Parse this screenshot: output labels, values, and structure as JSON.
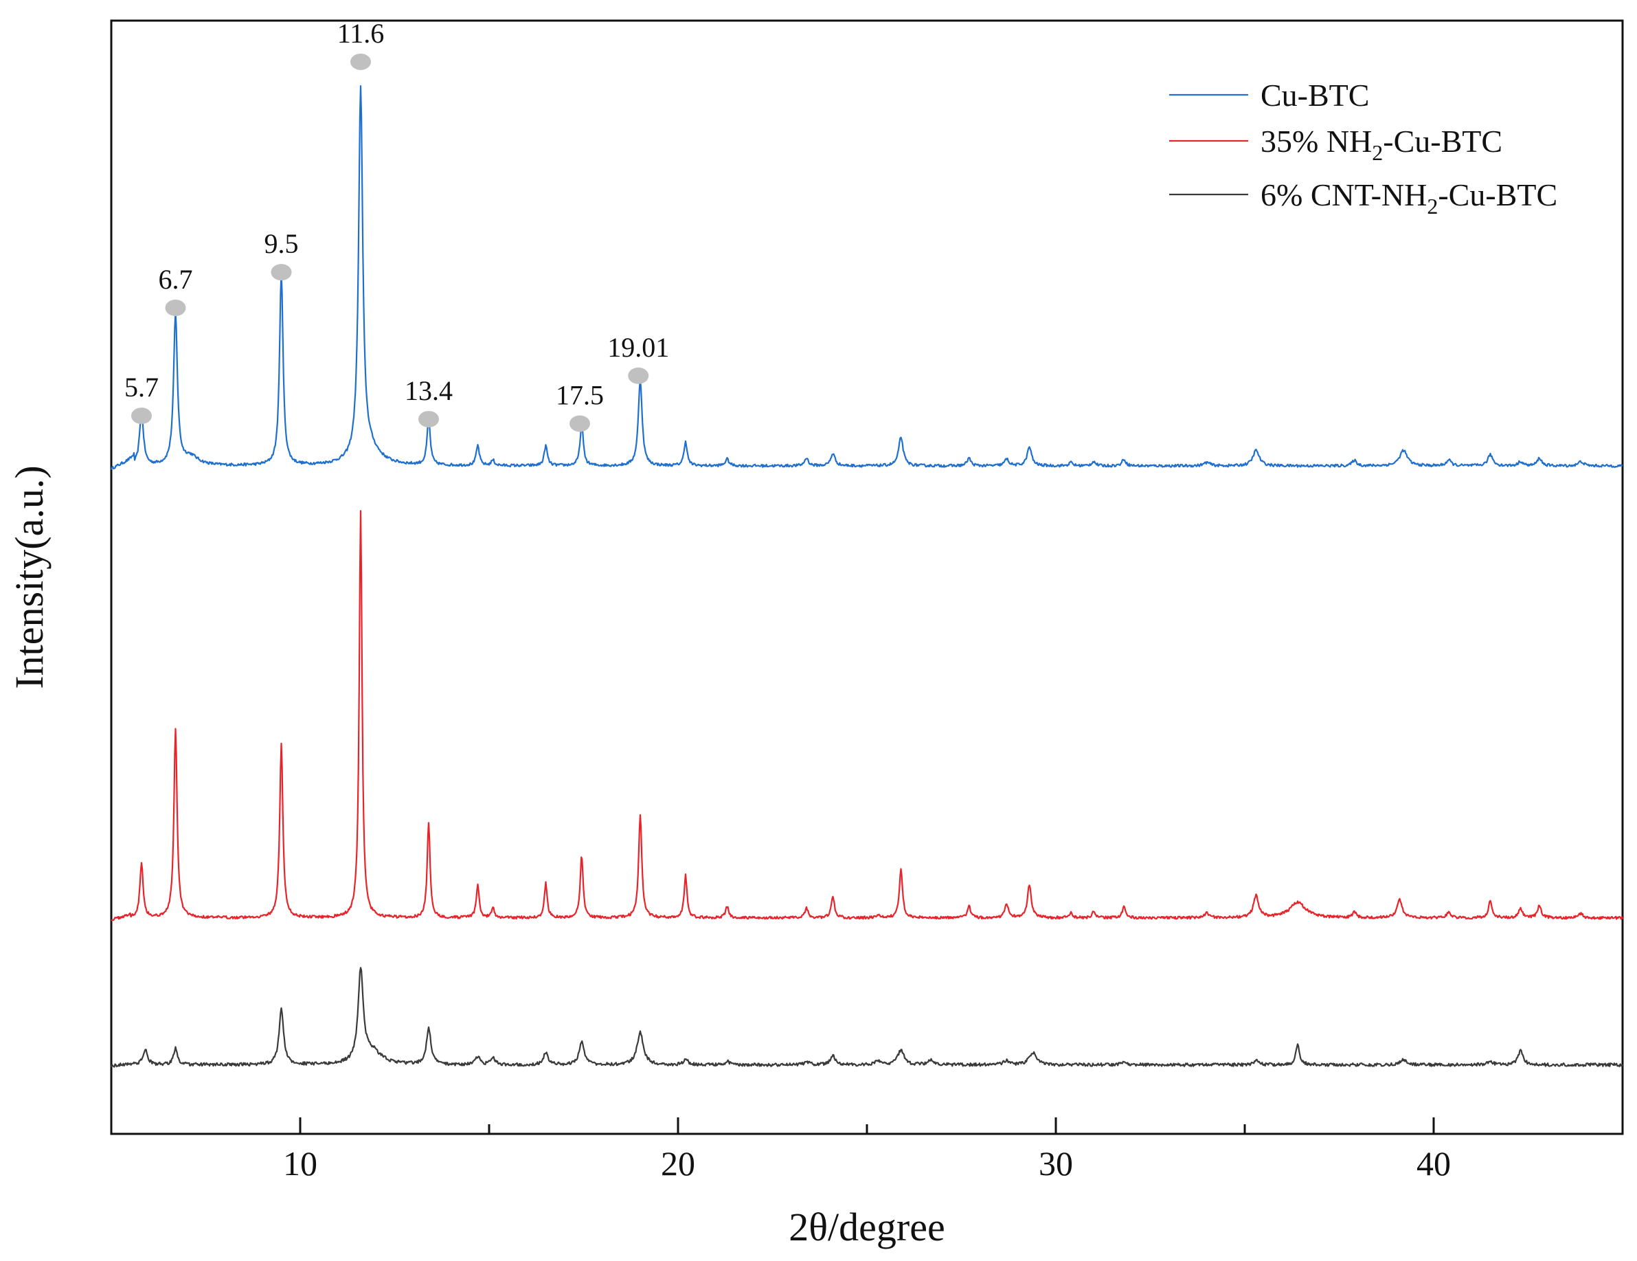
{
  "chart_data": {
    "type": "line",
    "title": "",
    "xlabel": "2θ/degree",
    "ylabel": "Intensity(a.u.)",
    "xlim": [
      5,
      45
    ],
    "ylim": [
      0,
      100
    ],
    "x_ticks": [
      10,
      20,
      30,
      40
    ],
    "x_tick_labels": [
      "10",
      "20",
      "30",
      "40"
    ],
    "y_ticks_shown": false,
    "grid": false,
    "legend_position": "top-right",
    "peak_marker_color": "#c0c0c0",
    "peak_labels": [
      {
        "label": "5.7",
        "x": 5.8,
        "y": 64.5
      },
      {
        "label": "6.7",
        "x": 6.7,
        "y": 74.2
      },
      {
        "label": "9.5",
        "x": 9.5,
        "y": 77.4
      },
      {
        "label": "11.6",
        "x": 11.6,
        "y": 96.3
      },
      {
        "label": "13.4",
        "x": 13.4,
        "y": 64.2
      },
      {
        "label": "17.5",
        "x": 17.4,
        "y": 63.8
      },
      {
        "label": "19.01",
        "x": 18.95,
        "y": 68.1
      }
    ],
    "series": [
      {
        "name": "Cu-BTC",
        "color": "#1f6fcf",
        "baseline": 60.0,
        "noise": 0.12,
        "rise": [
          {
            "x": 5.0,
            "y": 59.7
          },
          {
            "x": 5.6,
            "y": 60.6
          }
        ],
        "peaks": [
          {
            "x": 5.8,
            "h": 4.9,
            "w": 0.06
          },
          {
            "x": 6.7,
            "h": 13.5,
            "w": 0.06
          },
          {
            "x": 7.1,
            "h": 0.8,
            "w": 0.25
          },
          {
            "x": 9.5,
            "h": 17.4,
            "w": 0.055
          },
          {
            "x": 11.6,
            "h": 33.0,
            "w": 0.065
          },
          {
            "x": 11.8,
            "h": 1.5,
            "w": 0.35
          },
          {
            "x": 13.4,
            "h": 4.2,
            "w": 0.05
          },
          {
            "x": 14.7,
            "h": 1.8,
            "w": 0.05
          },
          {
            "x": 15.1,
            "h": 0.5,
            "w": 0.05
          },
          {
            "x": 16.5,
            "h": 1.8,
            "w": 0.05
          },
          {
            "x": 17.45,
            "h": 3.8,
            "w": 0.05
          },
          {
            "x": 19.0,
            "h": 7.8,
            "w": 0.06
          },
          {
            "x": 20.2,
            "h": 2.2,
            "w": 0.05
          },
          {
            "x": 21.3,
            "h": 0.6,
            "w": 0.06
          },
          {
            "x": 23.4,
            "h": 0.7,
            "w": 0.06
          },
          {
            "x": 24.1,
            "h": 1.1,
            "w": 0.07
          },
          {
            "x": 25.9,
            "h": 2.6,
            "w": 0.07
          },
          {
            "x": 27.7,
            "h": 0.7,
            "w": 0.06
          },
          {
            "x": 28.7,
            "h": 0.6,
            "w": 0.07
          },
          {
            "x": 29.3,
            "h": 1.7,
            "w": 0.07
          },
          {
            "x": 30.4,
            "h": 0.3,
            "w": 0.06
          },
          {
            "x": 31.0,
            "h": 0.4,
            "w": 0.06
          },
          {
            "x": 31.8,
            "h": 0.6,
            "w": 0.06
          },
          {
            "x": 34.0,
            "h": 0.3,
            "w": 0.1
          },
          {
            "x": 35.3,
            "h": 1.4,
            "w": 0.1
          },
          {
            "x": 37.9,
            "h": 0.5,
            "w": 0.07
          },
          {
            "x": 39.2,
            "h": 1.4,
            "w": 0.12
          },
          {
            "x": 40.4,
            "h": 0.5,
            "w": 0.08
          },
          {
            "x": 41.5,
            "h": 1.0,
            "w": 0.08
          },
          {
            "x": 42.3,
            "h": 0.4,
            "w": 0.07
          },
          {
            "x": 42.8,
            "h": 0.7,
            "w": 0.07
          },
          {
            "x": 43.9,
            "h": 0.4,
            "w": 0.08
          }
        ]
      },
      {
        "name": "35% NH2-Cu-BTC",
        "color": "#e8242a",
        "baseline": 19.4,
        "noise": 0.12,
        "rise": [
          {
            "x": 5.0,
            "y": 19.2
          },
          {
            "x": 5.5,
            "y": 19.6
          }
        ],
        "peaks": [
          {
            "x": 5.8,
            "h": 5.0,
            "w": 0.05
          },
          {
            "x": 6.7,
            "h": 16.9,
            "w": 0.05
          },
          {
            "x": 9.5,
            "h": 15.6,
            "w": 0.05
          },
          {
            "x": 11.6,
            "h": 36.6,
            "w": 0.045
          },
          {
            "x": 13.4,
            "h": 8.6,
            "w": 0.045
          },
          {
            "x": 14.7,
            "h": 3.0,
            "w": 0.045
          },
          {
            "x": 15.1,
            "h": 0.9,
            "w": 0.045
          },
          {
            "x": 16.5,
            "h": 3.1,
            "w": 0.045
          },
          {
            "x": 17.45,
            "h": 5.6,
            "w": 0.045
          },
          {
            "x": 19.0,
            "h": 9.3,
            "w": 0.05
          },
          {
            "x": 20.2,
            "h": 3.8,
            "w": 0.045
          },
          {
            "x": 21.3,
            "h": 1.0,
            "w": 0.05
          },
          {
            "x": 23.4,
            "h": 0.9,
            "w": 0.05
          },
          {
            "x": 24.1,
            "h": 1.9,
            "w": 0.05
          },
          {
            "x": 25.3,
            "h": 0.3,
            "w": 0.05
          },
          {
            "x": 25.9,
            "h": 4.4,
            "w": 0.05
          },
          {
            "x": 27.7,
            "h": 1.1,
            "w": 0.05
          },
          {
            "x": 28.7,
            "h": 1.2,
            "w": 0.06
          },
          {
            "x": 29.3,
            "h": 3.0,
            "w": 0.06
          },
          {
            "x": 30.4,
            "h": 0.5,
            "w": 0.05
          },
          {
            "x": 31.0,
            "h": 0.6,
            "w": 0.05
          },
          {
            "x": 31.8,
            "h": 1.0,
            "w": 0.05
          },
          {
            "x": 34.0,
            "h": 0.4,
            "w": 0.08
          },
          {
            "x": 35.3,
            "h": 2.0,
            "w": 0.08
          },
          {
            "x": 36.4,
            "h": 1.4,
            "w": 0.25
          },
          {
            "x": 37.9,
            "h": 0.5,
            "w": 0.06
          },
          {
            "x": 39.1,
            "h": 1.6,
            "w": 0.08
          },
          {
            "x": 40.4,
            "h": 0.5,
            "w": 0.06
          },
          {
            "x": 41.5,
            "h": 1.5,
            "w": 0.06
          },
          {
            "x": 42.3,
            "h": 0.8,
            "w": 0.06
          },
          {
            "x": 42.8,
            "h": 1.1,
            "w": 0.06
          },
          {
            "x": 43.9,
            "h": 0.4,
            "w": 0.06
          }
        ]
      },
      {
        "name": "6% CNT-NH2-Cu-BTC",
        "color": "#3a3a3a",
        "baseline": 6.2,
        "noise": 0.14,
        "rise": [
          {
            "x": 5.0,
            "y": 6.1
          },
          {
            "x": 5.6,
            "y": 6.3
          }
        ],
        "peaks": [
          {
            "x": 5.9,
            "h": 1.4,
            "w": 0.07
          },
          {
            "x": 6.7,
            "h": 1.5,
            "w": 0.06
          },
          {
            "x": 9.5,
            "h": 5.1,
            "w": 0.07
          },
          {
            "x": 11.6,
            "h": 8.2,
            "w": 0.08
          },
          {
            "x": 11.9,
            "h": 1.2,
            "w": 0.3
          },
          {
            "x": 13.4,
            "h": 3.3,
            "w": 0.07
          },
          {
            "x": 14.7,
            "h": 0.7,
            "w": 0.07
          },
          {
            "x": 15.1,
            "h": 0.6,
            "w": 0.07
          },
          {
            "x": 16.5,
            "h": 1.1,
            "w": 0.07
          },
          {
            "x": 17.45,
            "h": 2.1,
            "w": 0.08
          },
          {
            "x": 19.0,
            "h": 2.9,
            "w": 0.1
          },
          {
            "x": 20.2,
            "h": 0.5,
            "w": 0.07
          },
          {
            "x": 21.3,
            "h": 0.3,
            "w": 0.07
          },
          {
            "x": 23.4,
            "h": 0.3,
            "w": 0.07
          },
          {
            "x": 24.1,
            "h": 0.8,
            "w": 0.08
          },
          {
            "x": 25.3,
            "h": 0.4,
            "w": 0.08
          },
          {
            "x": 25.9,
            "h": 1.3,
            "w": 0.1
          },
          {
            "x": 26.7,
            "h": 0.4,
            "w": 0.1
          },
          {
            "x": 28.7,
            "h": 0.4,
            "w": 0.08
          },
          {
            "x": 29.4,
            "h": 1.1,
            "w": 0.12
          },
          {
            "x": 31.8,
            "h": 0.3,
            "w": 0.08
          },
          {
            "x": 35.3,
            "h": 0.4,
            "w": 0.08
          },
          {
            "x": 36.4,
            "h": 1.8,
            "w": 0.06
          },
          {
            "x": 39.2,
            "h": 0.5,
            "w": 0.1
          },
          {
            "x": 41.5,
            "h": 0.3,
            "w": 0.08
          },
          {
            "x": 42.3,
            "h": 1.3,
            "w": 0.08
          }
        ]
      }
    ]
  }
}
